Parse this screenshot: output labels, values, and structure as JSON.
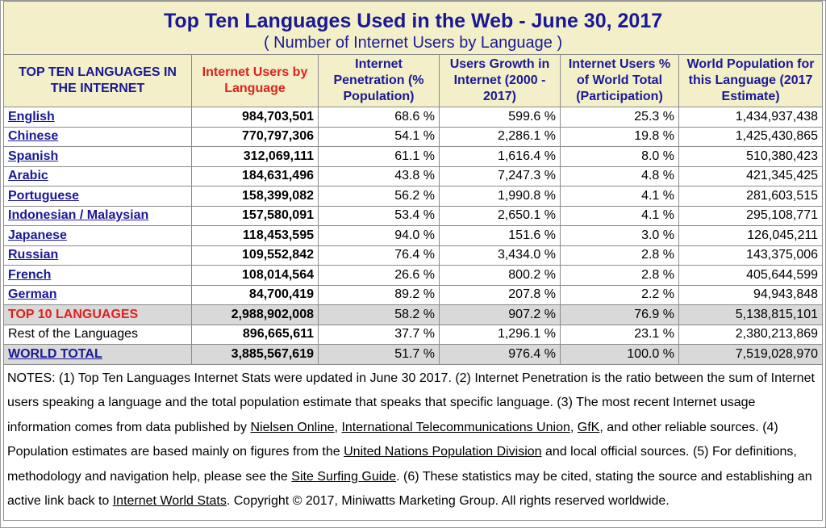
{
  "title": "Top Ten Languages Used in the Web - June 30, 2017",
  "subtitle": "( Number of Internet Users by Language )",
  "headers": {
    "language": "TOP TEN LANGUAGES IN THE INTERNET",
    "users": "Internet Users by Language",
    "penetration": "Internet Penetration (% Population)",
    "growth": "Users Growth in Internet (2000 - 2017)",
    "share": "Internet Users % of World Total (Participation)",
    "population": "World Population for this Language (2017 Estimate)"
  },
  "rows": [
    {
      "language": "English",
      "users": "984,703,501",
      "penetration": "68.6 %",
      "growth": "599.6 %",
      "share": "25.3 %",
      "population": "1,434,937,438"
    },
    {
      "language": "Chinese",
      "users": "770,797,306",
      "penetration": "54.1 %",
      "growth": "2,286.1 %",
      "share": "19.8 %",
      "population": "1,425,430,865"
    },
    {
      "language": "Spanish",
      "users": "312,069,111",
      "penetration": "61.1 %",
      "growth": "1,616.4 %",
      "share": "8.0 %",
      "population": "510,380,423"
    },
    {
      "language": "Arabic",
      "users": "184,631,496",
      "penetration": "43.8 %",
      "growth": "7,247.3 %",
      "share": "4.8 %",
      "population": "421,345,425"
    },
    {
      "language": "Portuguese",
      "users": "158,399,082",
      "penetration": "56.2 %",
      "growth": "1,990.8 %",
      "share": "4.1 %",
      "population": "281,603,515"
    },
    {
      "language": "Indonesian / Malaysian",
      "users": "157,580,091",
      "penetration": "53.4 %",
      "growth": "2,650.1 %",
      "share": "4.1 %",
      "population": "295,108,771"
    },
    {
      "language": "Japanese",
      "users": "118,453,595",
      "penetration": "94.0 %",
      "growth": "151.6 %",
      "share": "3.0 %",
      "population": "126,045,211"
    },
    {
      "language": "Russian",
      "users": "109,552,842",
      "penetration": "76.4 %",
      "growth": "3,434.0 %",
      "share": "2.8 %",
      "population": "143,375,006"
    },
    {
      "language": "French",
      "users": "108,014,564",
      "penetration": "26.6 %",
      "growth": "800.2 %",
      "share": "2.8 %",
      "population": "405,644,599"
    },
    {
      "language": "German",
      "users": "84,700,419",
      "penetration": "89.2 %",
      "growth": "207.8 %",
      "share": "2.2 %",
      "population": "94,943,848"
    }
  ],
  "top10": {
    "language": "TOP 10 LANGUAGES",
    "users": "2,988,902,008",
    "penetration": "58.2 %",
    "growth": "907.2 %",
    "share": "76.9 %",
    "population": "5,138,815,101"
  },
  "rest": {
    "language": "Rest of the Languages",
    "users": "896,665,611",
    "penetration": "37.7 %",
    "growth": "1,296.1 %",
    "share": "23.1 %",
    "population": "2,380,213,869"
  },
  "total": {
    "language": "WORLD TOTAL",
    "users": "3,885,567,619",
    "penetration": "51.7 %",
    "growth": "976.4 %",
    "share": "100.0 %",
    "population": "7,519,028,970"
  },
  "notes": {
    "p1": "NOTES: (1) Top Ten Languages Internet Stats were updated in June 30 2017. (2) Internet Penetration is the ratio between the sum of Internet users speaking a language and the total population estimate that speaks that specific language. (3) The most recent Internet usage information comes from data published by ",
    "link_nielsen": "Nielsen Online",
    "sep1": ", ",
    "link_itu": "International Telecommunications Union",
    "sep2": ", ",
    "link_gfk": "GfK",
    "p2": ", and other reliable sources. (4) Population estimates are based mainly on figures from the ",
    "link_un": "United Nations Population Division",
    "p3": " and local official sources. (5) For definitions, methodology and navigation help, please see the ",
    "link_guide": "Site Surfing Guide",
    "p4": ". (6) These statistics may be cited, stating the source and establishing an active link back to ",
    "link_iws": "Internet World Stats",
    "p5": ". Copyright © 2017, Miniwatts Marketing Group. All rights reserved worldwide."
  },
  "colors": {
    "header_bg": "#f3f0c9",
    "title_blue": "#1a1896",
    "highlight_red": "#e0201d",
    "summary_gray": "#d9d9d9"
  }
}
